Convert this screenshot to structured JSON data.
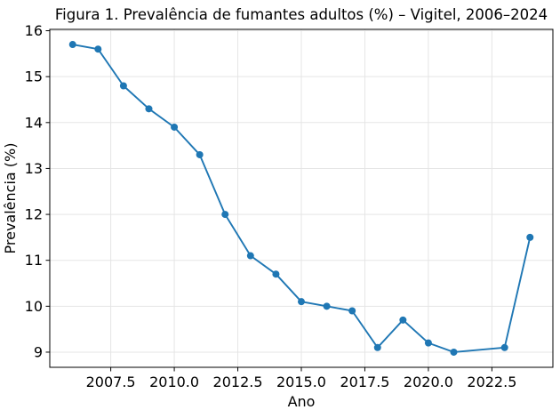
{
  "chart_data": {
    "type": "line",
    "title": "Figura 1. Prevalência de fumantes adultos (%) – Vigitel, 2006–2024",
    "xlabel": "Ano",
    "ylabel": "Prevalência (%)",
    "series": [
      {
        "name": "Prevalência de fumantes adultos (%)",
        "x": [
          2006,
          2007,
          2008,
          2009,
          2010,
          2011,
          2012,
          2013,
          2014,
          2015,
          2016,
          2017,
          2018,
          2019,
          2020,
          2021,
          2023,
          2024
        ],
        "y": [
          15.7,
          15.6,
          14.8,
          14.3,
          13.9,
          13.3,
          12.0,
          11.1,
          10.7,
          10.1,
          10.0,
          9.9,
          9.1,
          9.7,
          9.2,
          9.0,
          9.1,
          11.5
        ]
      }
    ],
    "xlim": [
      2005.1,
      2024.9
    ],
    "ylim": [
      8.67,
      16.03
    ],
    "xticks": [
      2007.5,
      2010.0,
      2012.5,
      2015.0,
      2017.5,
      2020.0,
      2022.5
    ],
    "xtick_labels": [
      "2007.5",
      "2010.0",
      "2012.5",
      "2015.0",
      "2017.5",
      "2020.0",
      "2022.5"
    ],
    "yticks": [
      9,
      10,
      11,
      12,
      13,
      14,
      15,
      16
    ],
    "ytick_labels": [
      "9",
      "10",
      "11",
      "12",
      "13",
      "14",
      "15",
      "16"
    ],
    "grid": true,
    "legend": false,
    "marker": "circle",
    "colors": {
      "line": "#1f77b4",
      "marker": "#1f77b4",
      "grid": "#e5e5e5",
      "spine": "#000000",
      "text": "#000000",
      "background": "#ffffff"
    }
  }
}
